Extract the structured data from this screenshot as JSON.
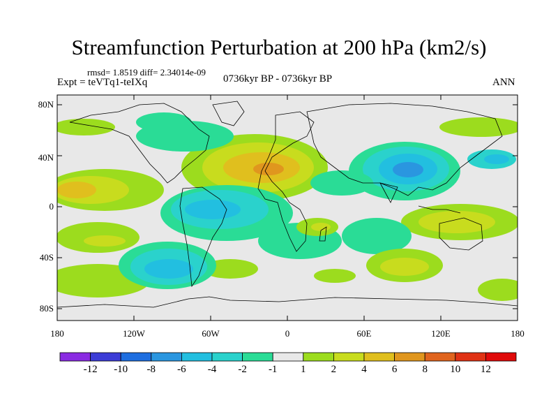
{
  "title": "Streamfunction Perturbation at 200 hPa (km2/s)",
  "stats": "rmsd= 1.8519 diff= 2.34014e-09",
  "expt": "Expt = teVTq1-teIXq",
  "period": "0736kyr BP - 0736kyr BP",
  "season": "ANN",
  "lat_ticks": [
    "80N",
    "40N",
    "0",
    "40S",
    "80S"
  ],
  "lon_ticks": [
    "180",
    "120W",
    "60W",
    "0",
    "60E",
    "120E",
    "180"
  ],
  "colorbar": {
    "labels": [
      "-12",
      "-10",
      "-8",
      "-6",
      "-4",
      "-2",
      "-1",
      "1",
      "2",
      "4",
      "6",
      "8",
      "10",
      "12"
    ],
    "colors": [
      "#8a2be2",
      "#3c3cd6",
      "#1e6ee0",
      "#2a96e0",
      "#22bfe0",
      "#2ad2cc",
      "#2adc96",
      "#e8e8e8",
      "#9cdc1e",
      "#c8dc1e",
      "#e0bf1e",
      "#e0961e",
      "#e0641e",
      "#e03214",
      "#e00a0a"
    ]
  },
  "map_colors": {
    "background": "#e8e8e8",
    "coast": "#000000"
  }
}
